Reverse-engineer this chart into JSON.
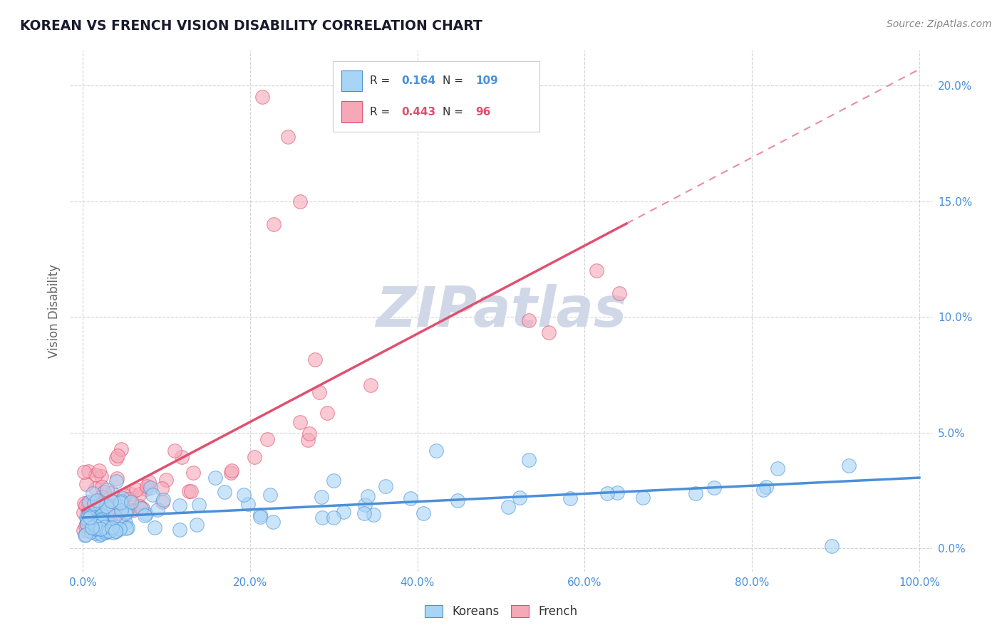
{
  "title": "KOREAN VS FRENCH VISION DISABILITY CORRELATION CHART",
  "source": "Source: ZipAtlas.com",
  "ylabel": "Vision Disability",
  "koreans_color": "#a8d4f5",
  "french_color": "#f5a8b8",
  "koreans_line_color": "#4a90d9",
  "french_line_color": "#e05070",
  "koreans_R": 0.164,
  "koreans_N": 109,
  "french_R": 0.443,
  "french_N": 96,
  "background_color": "#ffffff",
  "grid_color": "#c8c8c8",
  "title_color": "#1a1a2e",
  "tick_color": "#4a90d9",
  "label_color": "#666666",
  "watermark_color": "#d0d8e8",
  "koreans_seed": 123,
  "french_seed": 456
}
